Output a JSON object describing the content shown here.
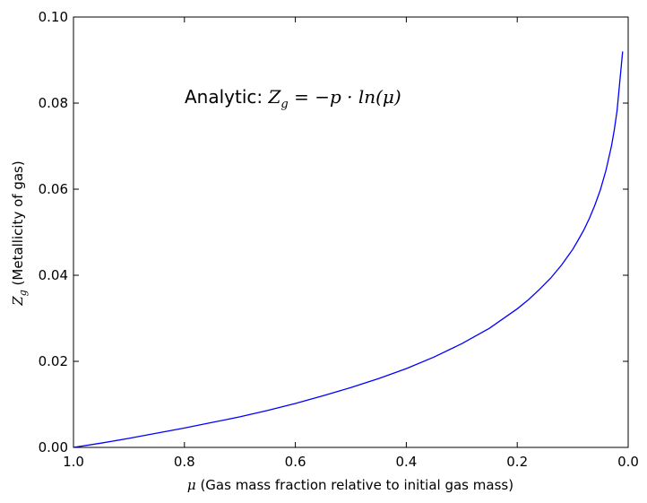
{
  "chart_data": {
    "type": "line",
    "title": "",
    "xlabel": {
      "symbol": "μ",
      "text": " (Gas mass fraction relative to initial gas mass)"
    },
    "ylabel": {
      "symbol": "Z",
      "subscript": "g",
      "text": " (Metallicity of gas)"
    },
    "annotation": {
      "prefix": "Analytic: ",
      "Z": "Z",
      "sub": "g",
      "rest": " = −p · ln(μ)"
    },
    "xlim": [
      1.0,
      0.0
    ],
    "ylim": [
      0.0,
      0.1
    ],
    "x_ticks": [
      "1.0",
      "0.8",
      "0.6",
      "0.4",
      "0.2",
      "0.0"
    ],
    "x_tick_values": [
      1.0,
      0.8,
      0.6,
      0.4,
      0.2,
      0.0
    ],
    "y_ticks": [
      "0.00",
      "0.02",
      "0.04",
      "0.06",
      "0.08",
      "0.10"
    ],
    "y_tick_values": [
      0.0,
      0.02,
      0.04,
      0.06,
      0.08,
      0.1
    ],
    "grid": false,
    "line_color": "#0000ff",
    "series": [
      {
        "x": [
          1.0,
          0.95,
          0.9,
          0.85,
          0.8,
          0.75,
          0.7,
          0.65,
          0.6,
          0.55,
          0.5,
          0.45,
          0.4,
          0.35,
          0.3,
          0.25,
          0.2,
          0.18,
          0.16,
          0.14,
          0.12,
          0.1,
          0.09,
          0.08,
          0.07,
          0.06,
          0.05,
          0.04,
          0.03,
          0.025,
          0.02,
          0.01
        ],
        "y": [
          0.0,
          0.001,
          0.0021,
          0.0033,
          0.0045,
          0.0058,
          0.0071,
          0.0086,
          0.0102,
          0.012,
          0.0139,
          0.016,
          0.0183,
          0.021,
          0.0241,
          0.0277,
          0.0322,
          0.0343,
          0.0367,
          0.0393,
          0.0424,
          0.046,
          0.0482,
          0.0505,
          0.0532,
          0.0563,
          0.0599,
          0.0644,
          0.0701,
          0.0738,
          0.0783,
          0.092
        ]
      }
    ]
  }
}
